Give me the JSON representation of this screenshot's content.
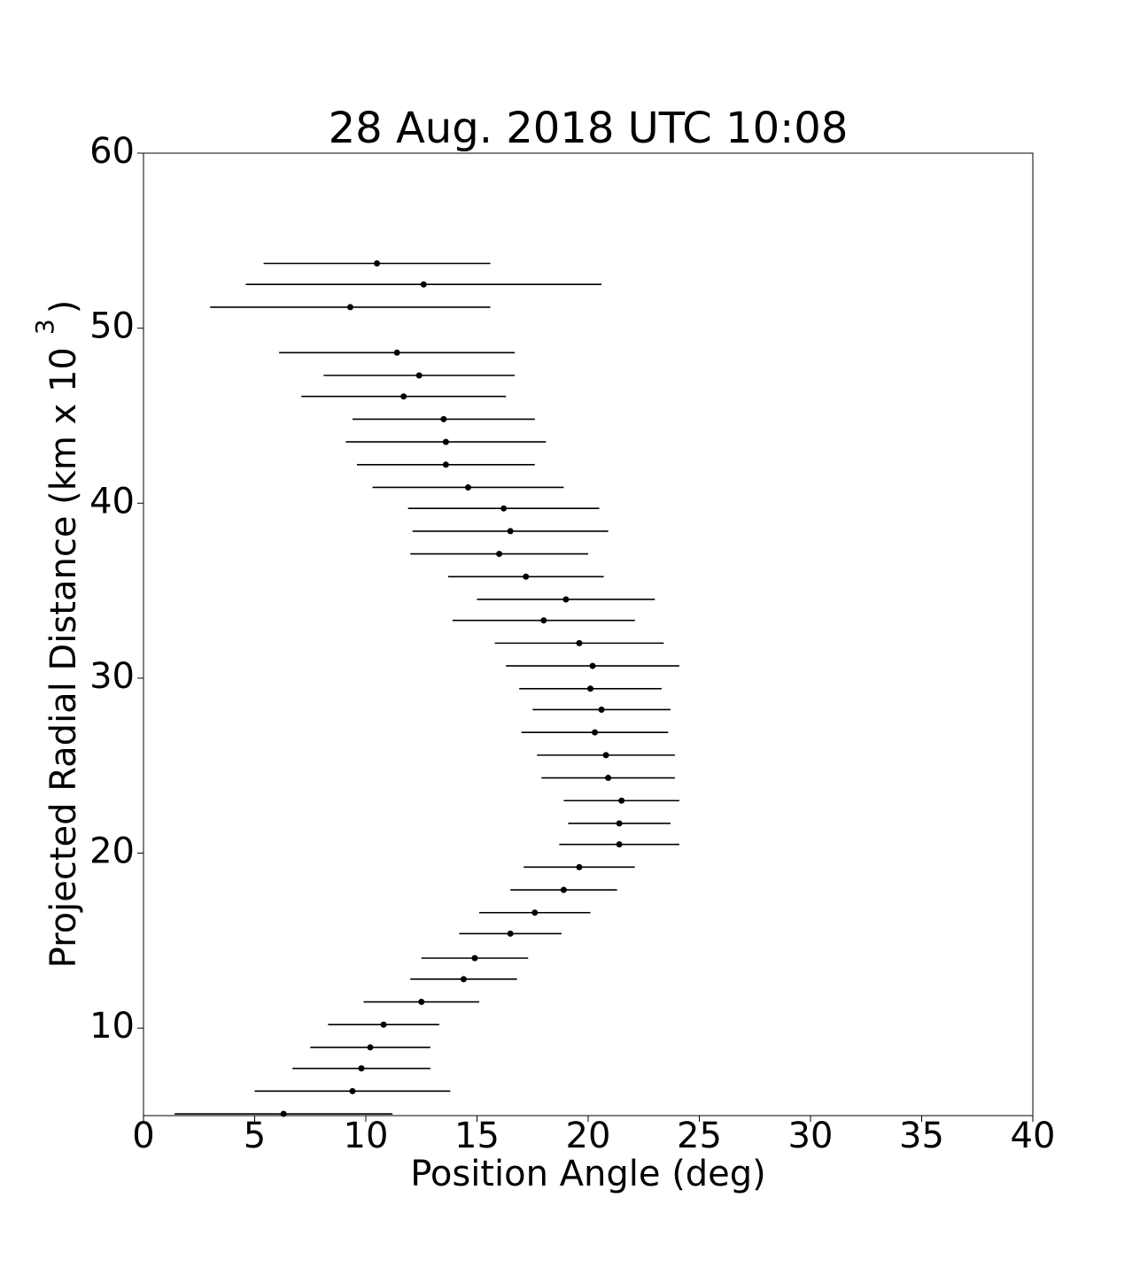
{
  "chart_data": {
    "type": "errorbar",
    "title": "28 Aug. 2018 UTC 10:08",
    "xlabel": "Position Angle (deg)",
    "ylabel": "Projected Radial Distance (km x 10",
    "ylabel_superscript": "3",
    "ylabel_end": ")",
    "color": "#000000",
    "xlim": [
      0,
      40
    ],
    "xticks": [
      0,
      5,
      10,
      15,
      20,
      25,
      30,
      35,
      40
    ],
    "ylim": [
      5,
      60
    ],
    "yticks": [
      10,
      20,
      30,
      40,
      50,
      60
    ],
    "grid": false,
    "x": [
      10.5,
      12.6,
      9.3,
      11.4,
      12.4,
      11.7,
      13.5,
      13.6,
      13.6,
      14.6,
      16.2,
      16.5,
      16.0,
      17.2,
      19.0,
      18.0,
      19.6,
      20.2,
      20.1,
      20.6,
      20.3,
      20.8,
      20.9,
      21.5,
      21.4,
      21.4,
      19.6,
      18.9,
      17.6,
      16.5,
      14.9,
      14.4,
      12.5,
      10.8,
      10.2,
      9.8,
      9.4,
      6.3
    ],
    "y": [
      53.7,
      52.5,
      51.2,
      48.6,
      47.3,
      46.1,
      44.8,
      43.5,
      42.2,
      40.9,
      39.7,
      38.4,
      37.1,
      35.8,
      34.5,
      33.3,
      32.0,
      30.7,
      29.4,
      28.2,
      26.9,
      25.6,
      24.3,
      23.0,
      21.7,
      20.5,
      19.2,
      17.9,
      16.6,
      15.4,
      14.0,
      12.8,
      11.5,
      10.2,
      8.9,
      7.7,
      6.4,
      5.1
    ],
    "xerr": [
      5.1,
      8.0,
      6.3,
      5.3,
      4.3,
      4.6,
      4.1,
      4.5,
      4.0,
      4.3,
      4.3,
      4.4,
      4.0,
      3.5,
      4.0,
      4.1,
      3.8,
      3.9,
      3.2,
      3.1,
      3.3,
      3.1,
      3.0,
      2.6,
      2.3,
      2.7,
      2.5,
      2.4,
      2.5,
      2.3,
      2.4,
      2.4,
      2.6,
      2.5,
      2.7,
      3.1,
      4.4,
      4.9
    ]
  }
}
